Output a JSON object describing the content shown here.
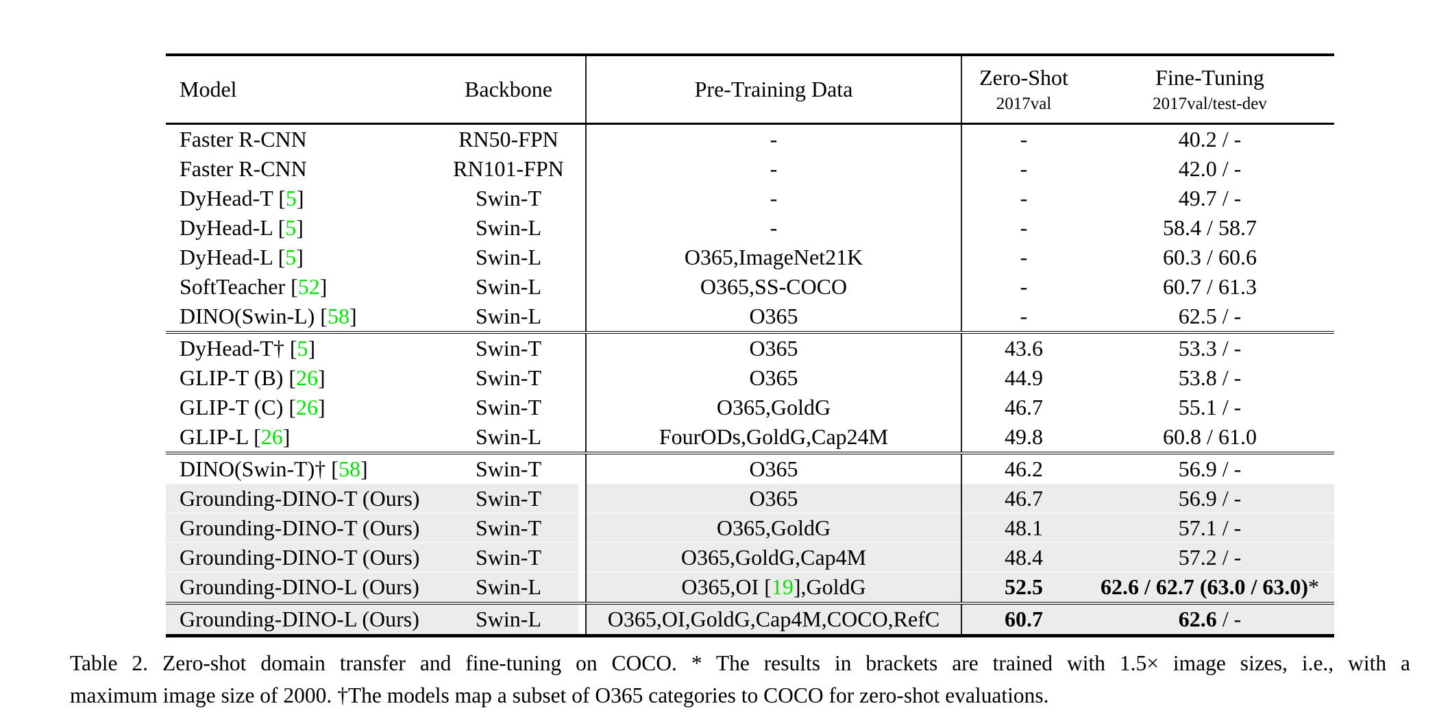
{
  "table": {
    "colors": {
      "citation_green": "#00e400",
      "row_gray": "#ececec"
    },
    "header": {
      "model": "Model",
      "backbone": "Backbone",
      "pretrain": "Pre-Training Data",
      "zeroshot_line1": "Zero-Shot",
      "zeroshot_line2": "2017val",
      "finetune_line1": "Fine-Tuning",
      "finetune_line2": "2017val/test-dev"
    },
    "groups": [
      {
        "rows": [
          {
            "model_pre": "Faster R-CNN",
            "model_cite": "",
            "model_post": "",
            "backbone": "RN50-FPN",
            "pre_pre": "-",
            "pre_cite": "",
            "pre_post": "",
            "zs": "-",
            "zs_bold": false,
            "ft_bold": "",
            "ft_rest": "40.2 / -",
            "gray": false
          },
          {
            "model_pre": "Faster R-CNN",
            "model_cite": "",
            "model_post": "",
            "backbone": "RN101-FPN",
            "pre_pre": "-",
            "pre_cite": "",
            "pre_post": "",
            "zs": "-",
            "zs_bold": false,
            "ft_bold": "",
            "ft_rest": "42.0 / -",
            "gray": false
          },
          {
            "model_pre": "DyHead-T [",
            "model_cite": "5",
            "model_post": "]",
            "backbone": "Swin-T",
            "pre_pre": "-",
            "pre_cite": "",
            "pre_post": "",
            "zs": "-",
            "zs_bold": false,
            "ft_bold": "",
            "ft_rest": "49.7 / -",
            "gray": false
          },
          {
            "model_pre": "DyHead-L [",
            "model_cite": "5",
            "model_post": "]",
            "backbone": "Swin-L",
            "pre_pre": "-",
            "pre_cite": "",
            "pre_post": "",
            "zs": "-",
            "zs_bold": false,
            "ft_bold": "",
            "ft_rest": "58.4 / 58.7",
            "gray": false
          },
          {
            "model_pre": "DyHead-L [",
            "model_cite": "5",
            "model_post": "]",
            "backbone": "Swin-L",
            "pre_pre": "O365,ImageNet21K",
            "pre_cite": "",
            "pre_post": "",
            "zs": "-",
            "zs_bold": false,
            "ft_bold": "",
            "ft_rest": "60.3 / 60.6",
            "gray": false
          },
          {
            "model_pre": "SoftTeacher [",
            "model_cite": "52",
            "model_post": "]",
            "backbone": "Swin-L",
            "pre_pre": "O365,SS-COCO",
            "pre_cite": "",
            "pre_post": "",
            "zs": "-",
            "zs_bold": false,
            "ft_bold": "",
            "ft_rest": "60.7 / 61.3",
            "gray": false
          },
          {
            "model_pre": "DINO(Swin-L) [",
            "model_cite": "58",
            "model_post": "]",
            "backbone": "Swin-L",
            "pre_pre": "O365",
            "pre_cite": "",
            "pre_post": "",
            "zs": "-",
            "zs_bold": false,
            "ft_bold": "",
            "ft_rest": "62.5 / -",
            "gray": false
          }
        ]
      },
      {
        "rows": [
          {
            "model_pre": "DyHead-T† [",
            "model_cite": "5",
            "model_post": "]",
            "backbone": "Swin-T",
            "pre_pre": "O365",
            "pre_cite": "",
            "pre_post": "",
            "zs": "43.6",
            "zs_bold": false,
            "ft_bold": "",
            "ft_rest": "53.3 / -",
            "gray": false
          },
          {
            "model_pre": "GLIP-T (B) [",
            "model_cite": "26",
            "model_post": "]",
            "backbone": "Swin-T",
            "pre_pre": "O365",
            "pre_cite": "",
            "pre_post": "",
            "zs": "44.9",
            "zs_bold": false,
            "ft_bold": "",
            "ft_rest": "53.8 / -",
            "gray": false
          },
          {
            "model_pre": "GLIP-T (C) [",
            "model_cite": "26",
            "model_post": "]",
            "backbone": "Swin-T",
            "pre_pre": "O365,GoldG",
            "pre_cite": "",
            "pre_post": "",
            "zs": "46.7",
            "zs_bold": false,
            "ft_bold": "",
            "ft_rest": "55.1 / -",
            "gray": false
          },
          {
            "model_pre": "GLIP-L [",
            "model_cite": "26",
            "model_post": "]",
            "backbone": "Swin-L",
            "pre_pre": "FourODs,GoldG,Cap24M",
            "pre_cite": "",
            "pre_post": "",
            "zs": "49.8",
            "zs_bold": false,
            "ft_bold": "",
            "ft_rest": "60.8 / 61.0",
            "gray": false
          }
        ]
      },
      {
        "rows": [
          {
            "model_pre": "DINO(Swin-T)† [",
            "model_cite": "58",
            "model_post": "]",
            "backbone": "Swin-T",
            "pre_pre": "O365",
            "pre_cite": "",
            "pre_post": "",
            "zs": "46.2",
            "zs_bold": false,
            "ft_bold": "",
            "ft_rest": "56.9 / -",
            "gray": false
          },
          {
            "model_pre": "Grounding-DINO-T (Ours)",
            "model_cite": "",
            "model_post": "",
            "backbone": "Swin-T",
            "pre_pre": "O365",
            "pre_cite": "",
            "pre_post": "",
            "zs": "46.7",
            "zs_bold": false,
            "ft_bold": "",
            "ft_rest": "56.9 / -",
            "gray": true
          },
          {
            "model_pre": "Grounding-DINO-T (Ours)",
            "model_cite": "",
            "model_post": "",
            "backbone": "Swin-T",
            "pre_pre": "O365,GoldG",
            "pre_cite": "",
            "pre_post": "",
            "zs": "48.1",
            "zs_bold": false,
            "ft_bold": "",
            "ft_rest": "57.1 / -",
            "gray": true
          },
          {
            "model_pre": "Grounding-DINO-T (Ours)",
            "model_cite": "",
            "model_post": "",
            "backbone": "Swin-T",
            "pre_pre": "O365,GoldG,Cap4M",
            "pre_cite": "",
            "pre_post": "",
            "zs": "48.4",
            "zs_bold": false,
            "ft_bold": "",
            "ft_rest": "57.2 / -",
            "gray": true
          },
          {
            "model_pre": "Grounding-DINO-L (Ours)",
            "model_cite": "",
            "model_post": "",
            "backbone": "Swin-L",
            "pre_pre": "O365,OI [",
            "pre_cite": "19",
            "pre_post": "],GoldG",
            "zs": "52.5",
            "zs_bold": true,
            "ft_bold": "62.6 / 62.7 (63.0 / 63.0)",
            "ft_rest": "*",
            "gray": true
          }
        ]
      },
      {
        "rows": [
          {
            "model_pre": "Grounding-DINO-L (Ours)",
            "model_cite": "",
            "model_post": "",
            "backbone": "Swin-L",
            "pre_pre": "O365,OI,GoldG,Cap4M,COCO,RefC",
            "pre_cite": "",
            "pre_post": "",
            "zs": "60.7",
            "zs_bold": true,
            "ft_bold": "62.6",
            "ft_rest": " / -",
            "gray": true
          }
        ]
      }
    ]
  },
  "caption": {
    "line1": "Table 2.  Zero-shot domain transfer and fine-tuning on COCO. * The results in brackets are trained with 1.5× image sizes, i.e., with a",
    "line2": "maximum image size of 2000. †The models map a subset of O365 categories to COCO for zero-shot evaluations."
  }
}
